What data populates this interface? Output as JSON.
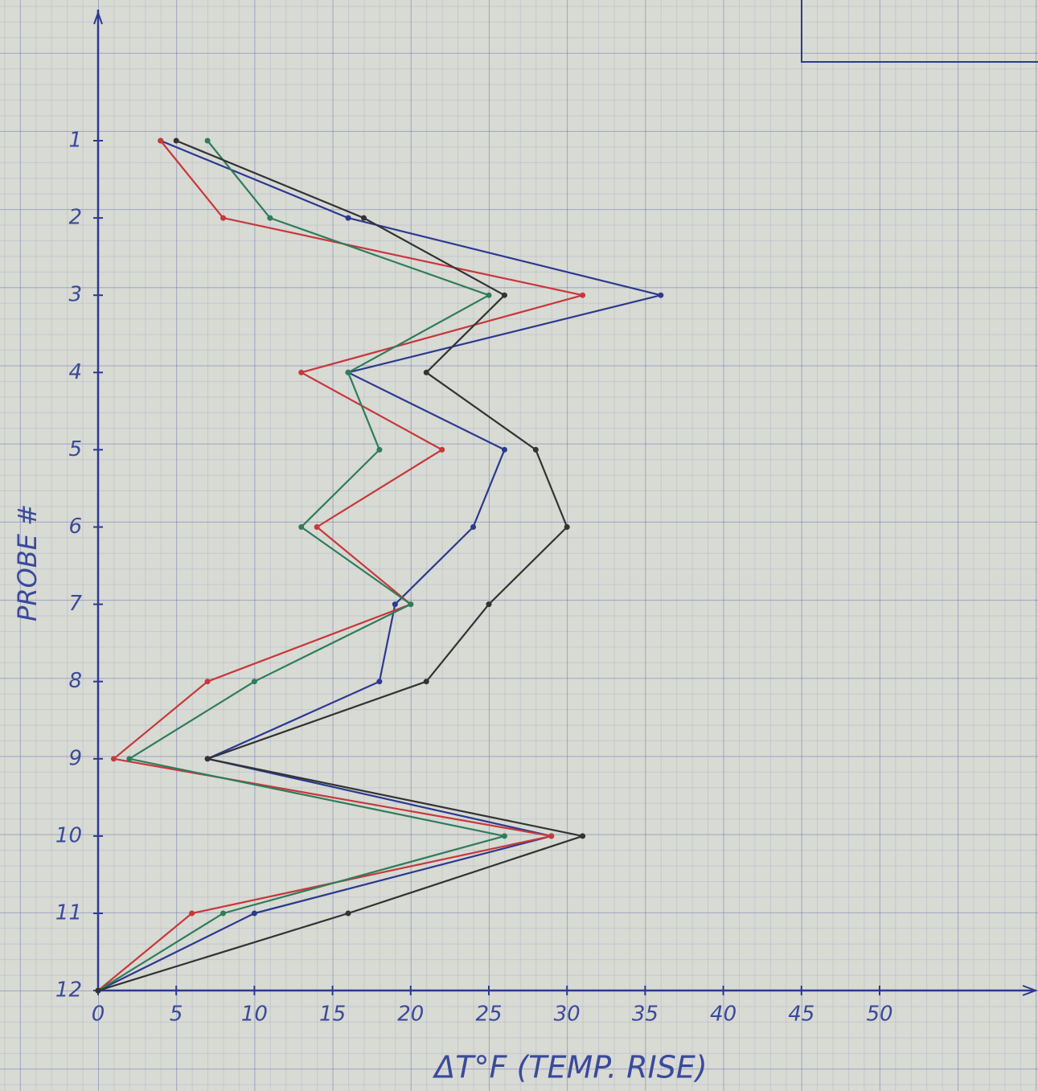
{
  "chart_data": {
    "type": "line",
    "orientation": "horizontal",
    "x_label": "ΔT°F (TEMP. RISE)",
    "y_label": "PROBE #",
    "categories": [
      "1",
      "2",
      "3",
      "4",
      "5",
      "6",
      "7",
      "8",
      "9",
      "10",
      "11",
      "12"
    ],
    "series": [
      {
        "color": "#2b3a8f",
        "values": [
          4,
          16,
          36,
          16,
          26,
          24,
          19,
          18,
          7,
          29,
          10,
          0
        ]
      },
      {
        "color": "#c8383a",
        "values": [
          4,
          8,
          31,
          13,
          22,
          14,
          20,
          7,
          1,
          29,
          6,
          0
        ]
      },
      {
        "color": "#2e7d5a",
        "values": [
          7,
          11,
          25,
          16,
          18,
          13,
          20,
          10,
          2,
          26,
          8,
          0
        ]
      },
      {
        "color": "#333333",
        "values": [
          5,
          17,
          26,
          21,
          28,
          30,
          25,
          21,
          7,
          31,
          16,
          0
        ]
      }
    ],
    "xlim": [
      0,
      60
    ],
    "xticks": [
      0,
      5,
      10,
      15,
      20,
      25,
      30,
      35,
      40,
      45,
      50
    ]
  }
}
